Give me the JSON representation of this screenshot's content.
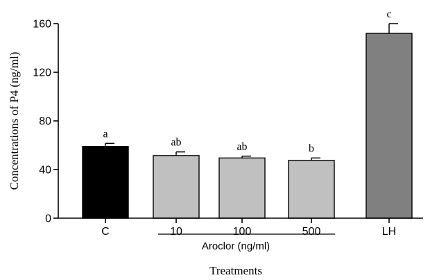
{
  "chart_data": {
    "type": "bar",
    "ylabel": "Concentrations of P4 (ng/ml)",
    "xlabel": "Treatments",
    "group_label": "Aroclor (ng/ml)",
    "ylim": [
      0,
      160
    ],
    "yticks": [
      "0",
      "40",
      "80",
      "120",
      "160"
    ],
    "grid": false,
    "categories": [
      "C",
      "10",
      "100",
      "500",
      "LH"
    ],
    "values": [
      59,
      51.5,
      49.5,
      47.5,
      152
    ],
    "errors": [
      2.5,
      3,
      1.5,
      2,
      8
    ],
    "letters": [
      "a",
      "ab",
      "ab",
      "b",
      "c"
    ],
    "colors": [
      "#000000",
      "#c0c0c0",
      "#c0c0c0",
      "#c0c0c0",
      "#808080"
    ]
  }
}
